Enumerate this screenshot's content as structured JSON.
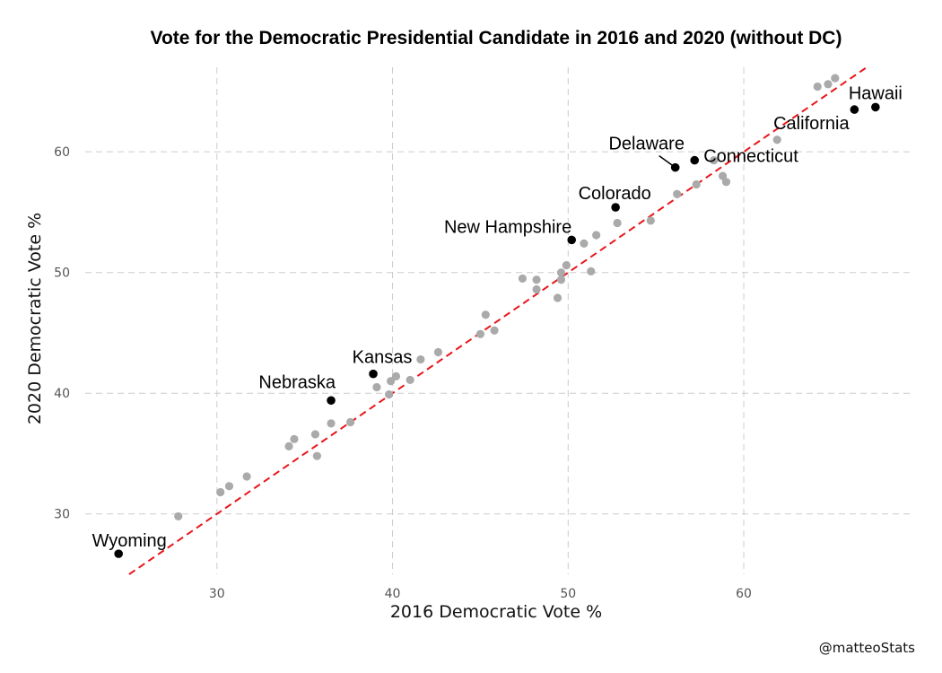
{
  "chart_data": {
    "type": "scatter",
    "title": "Vote for the Democratic Presidential Candidate in 2016 and 2020 (without DC)",
    "xlabel": "2016 Democratic Vote %",
    "ylabel": "2020 Democratic Vote %",
    "xlim": [
      22.5,
      69.5
    ],
    "ylim": [
      25,
      67
    ],
    "xticks": [
      30,
      40,
      50,
      60
    ],
    "yticks": [
      30,
      40,
      50,
      60
    ],
    "grid": true,
    "reference_line": {
      "type": "y=x",
      "color": "#e8161b",
      "style": "dashed"
    },
    "colors": {
      "highlighted": "#000000",
      "other": "#aaaaaa",
      "reference": "#e8161b"
    },
    "highlighted": [
      {
        "label": "Wyoming",
        "x": 24.4,
        "y": 26.7
      },
      {
        "label": "Nebraska",
        "x": 36.5,
        "y": 39.4
      },
      {
        "label": "Kansas",
        "x": 38.9,
        "y": 41.6
      },
      {
        "label": "New Hampshire",
        "x": 50.2,
        "y": 52.7
      },
      {
        "label": "Colorado",
        "x": 52.7,
        "y": 55.4
      },
      {
        "label": "Delaware",
        "x": 56.1,
        "y": 58.7
      },
      {
        "label": "Connecticut",
        "x": 57.2,
        "y": 59.3
      },
      {
        "label": "California",
        "x": 66.3,
        "y": 63.5
      },
      {
        "label": "Hawaii",
        "x": 67.5,
        "y": 63.7
      }
    ],
    "others": [
      [
        27.8,
        29.8
      ],
      [
        30.2,
        31.8
      ],
      [
        30.7,
        32.3
      ],
      [
        31.7,
        33.1
      ],
      [
        34.1,
        35.6
      ],
      [
        34.4,
        36.2
      ],
      [
        35.6,
        36.6
      ],
      [
        35.7,
        34.8
      ],
      [
        36.5,
        37.5
      ],
      [
        37.6,
        37.6
      ],
      [
        39.1,
        40.5
      ],
      [
        39.8,
        39.9
      ],
      [
        39.9,
        41.0
      ],
      [
        40.2,
        41.4
      ],
      [
        41.0,
        41.1
      ],
      [
        41.6,
        42.8
      ],
      [
        42.6,
        43.4
      ],
      [
        45.0,
        44.9
      ],
      [
        45.3,
        46.5
      ],
      [
        45.8,
        45.2
      ],
      [
        47.4,
        49.5
      ],
      [
        48.2,
        48.6
      ],
      [
        48.2,
        49.4
      ],
      [
        49.4,
        47.9
      ],
      [
        49.6,
        49.4
      ],
      [
        49.6,
        50.0
      ],
      [
        49.9,
        50.6
      ],
      [
        50.9,
        52.4
      ],
      [
        51.3,
        50.1
      ],
      [
        51.6,
        53.1
      ],
      [
        52.8,
        54.1
      ],
      [
        54.7,
        54.3
      ],
      [
        56.2,
        56.5
      ],
      [
        57.3,
        57.3
      ],
      [
        58.3,
        59.3
      ],
      [
        58.8,
        58.0
      ],
      [
        59.0,
        57.5
      ],
      [
        61.9,
        61.0
      ],
      [
        64.2,
        65.4
      ],
      [
        64.8,
        65.6
      ],
      [
        65.2,
        66.1
      ]
    ]
  },
  "caption": "@matteoStats"
}
